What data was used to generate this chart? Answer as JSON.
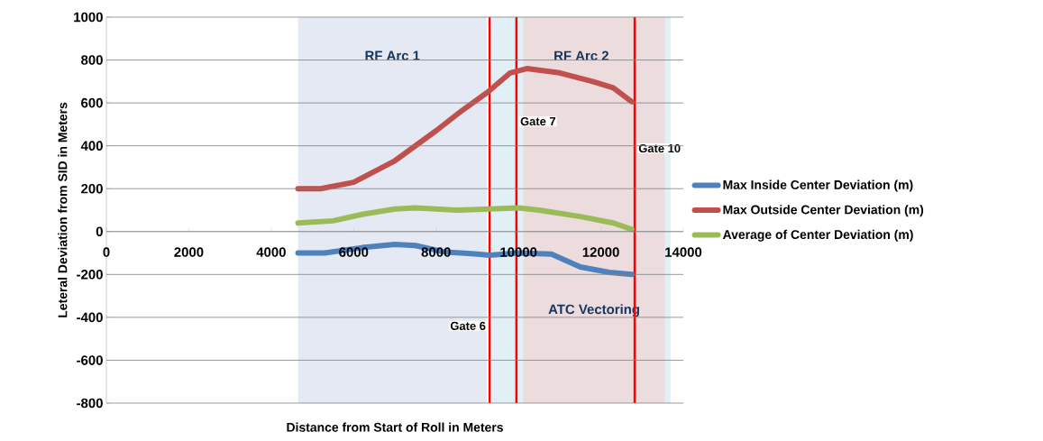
{
  "chart_data": {
    "type": "line",
    "xlabel": "Distance from Start of Roll in Meters",
    "ylabel": "Leteral Deviation from SID in Meters",
    "xlim": [
      0,
      14000
    ],
    "ylim": [
      -800,
      1000
    ],
    "xticks": [
      0,
      2000,
      4000,
      6000,
      8000,
      10000,
      12000,
      14000
    ],
    "yticks": [
      -800,
      -600,
      -400,
      -200,
      0,
      200,
      400,
      600,
      800,
      1000
    ],
    "grid": "y",
    "legend": "right",
    "marker": "none",
    "line_style": "solid",
    "series": [
      {
        "name": "Max Inside Center Deviation (m)",
        "color": "#4f81bd",
        "x": [
          4650,
          5300,
          6200,
          7000,
          7500,
          8200,
          9000,
          9300,
          10000,
          10800,
          11500,
          12200,
          12750
        ],
        "values": [
          -100,
          -100,
          -75,
          -60,
          -65,
          -95,
          -105,
          -110,
          -100,
          -105,
          -165,
          -190,
          -200
        ]
      },
      {
        "name": "Max Outside Center Deviation (m)",
        "color": "#c0504d",
        "x": [
          4650,
          5200,
          6000,
          7000,
          8000,
          8600,
          9250,
          9800,
          10200,
          11000,
          11800,
          12300,
          12750
        ],
        "values": [
          200,
          200,
          230,
          330,
          470,
          560,
          650,
          740,
          760,
          740,
          700,
          670,
          605
        ]
      },
      {
        "name": "Average of Center Deviation (m)",
        "color": "#9bbb59",
        "x": [
          4650,
          5500,
          6200,
          7000,
          7500,
          8500,
          9300,
          10000,
          10500,
          11500,
          12300,
          12750
        ],
        "values": [
          40,
          50,
          80,
          105,
          110,
          100,
          105,
          110,
          100,
          70,
          40,
          10
        ]
      }
    ],
    "bands": [
      {
        "axis": "x",
        "from": 4650,
        "to": 9230,
        "label": "RF Arc 1",
        "color": "#e4e9f3"
      },
      {
        "axis": "x",
        "from": 9360,
        "to": 13690,
        "label": "RF Arc 2",
        "color": "#e1f0f6"
      },
      {
        "axis": "x",
        "from": 10120,
        "to": 13550,
        "label": "ATC Vectoring",
        "color": "#ecdcdd"
      }
    ],
    "ref_lines": [
      {
        "axis": "x",
        "value": 9300,
        "label": "Gate 6",
        "color": "#ff0000"
      },
      {
        "axis": "x",
        "value": 9950,
        "label": "Gate 7",
        "color": "#ff0000"
      },
      {
        "axis": "x",
        "value": 12820,
        "label": "Gate 10",
        "color": "#ff0000"
      }
    ]
  }
}
